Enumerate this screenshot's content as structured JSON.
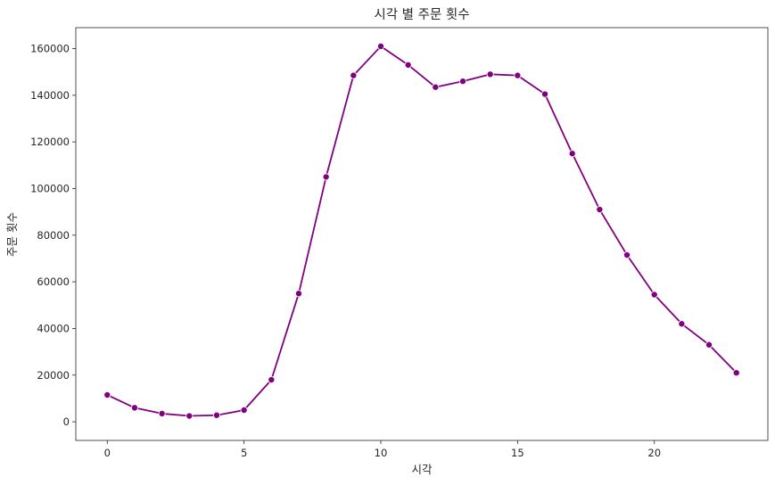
{
  "chart_data": {
    "type": "line",
    "title": "시각 별 주문 횟수",
    "xlabel": "시각",
    "ylabel": "주문 횟수",
    "xlim": [
      -1.15,
      24.15
    ],
    "ylim": [
      -8000,
      169000
    ],
    "xticks": [
      0,
      5,
      10,
      15,
      20
    ],
    "yticks": [
      0,
      20000,
      40000,
      60000,
      80000,
      100000,
      120000,
      140000,
      160000
    ],
    "grid": false,
    "color": "#800080",
    "series": [
      {
        "x": [
          0,
          1,
          2,
          3,
          4,
          5,
          6,
          7,
          8,
          9,
          10,
          11,
          12,
          13,
          14,
          15,
          16,
          17,
          18,
          19,
          20,
          21,
          22,
          23
        ],
        "y": [
          11500,
          6000,
          3500,
          2500,
          2800,
          5000,
          18000,
          55000,
          105000,
          148500,
          161000,
          153000,
          143500,
          146000,
          149000,
          148500,
          140500,
          115000,
          91000,
          71500,
          54500,
          42000,
          33000,
          21000
        ]
      }
    ]
  }
}
